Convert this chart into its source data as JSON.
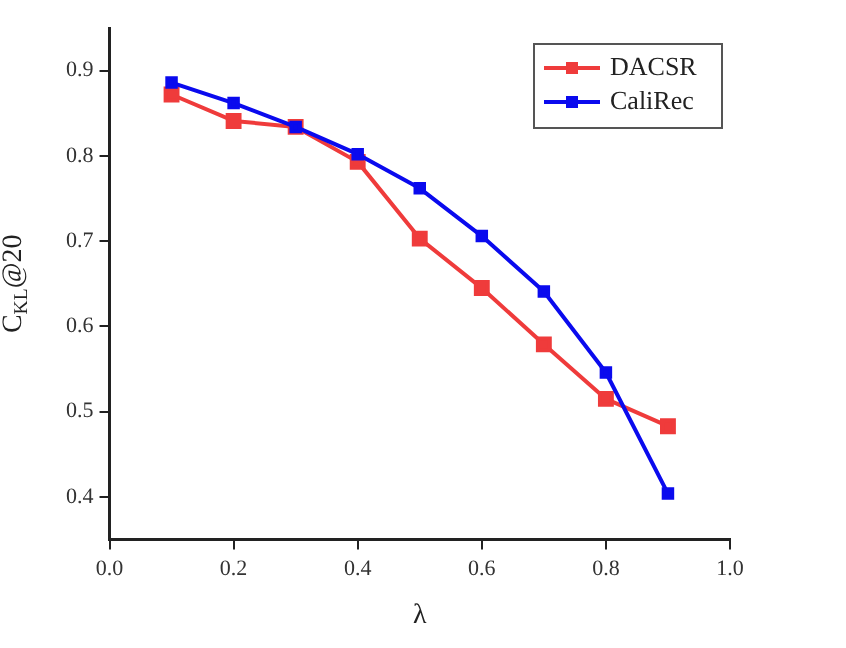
{
  "chart_data": {
    "type": "line",
    "xlabel": "λ",
    "ylabel": "C$_{KL}$@20",
    "x": [
      0.1,
      0.2,
      0.3,
      0.4,
      0.5,
      0.6,
      0.7,
      0.8,
      0.9
    ],
    "series": [
      {
        "name": "DACSR",
        "color": "#ef3b3b",
        "values": [
          0.872,
          0.841,
          0.834,
          0.793,
          0.703,
          0.645,
          0.579,
          0.515,
          0.483
        ]
      },
      {
        "name": "CaliRec",
        "color": "#0a0aee",
        "values": [
          0.886,
          0.862,
          0.834,
          0.802,
          0.762,
          0.706,
          0.641,
          0.546,
          0.404
        ]
      }
    ],
    "xlim": [
      0,
      1
    ],
    "xticks": [
      {
        "value": 0,
        "label": "0.0"
      },
      0.2,
      0.4,
      0.6,
      0.8,
      {
        "value": 1,
        "label": "1.0"
      }
    ],
    "ylim": [
      0.35,
      0.95
    ],
    "yticks": [
      0.4,
      0.5,
      0.6,
      0.7,
      0.8,
      0.9
    ],
    "grid": false,
    "legend": "top right",
    "marker": "square",
    "line_style": "solid"
  }
}
